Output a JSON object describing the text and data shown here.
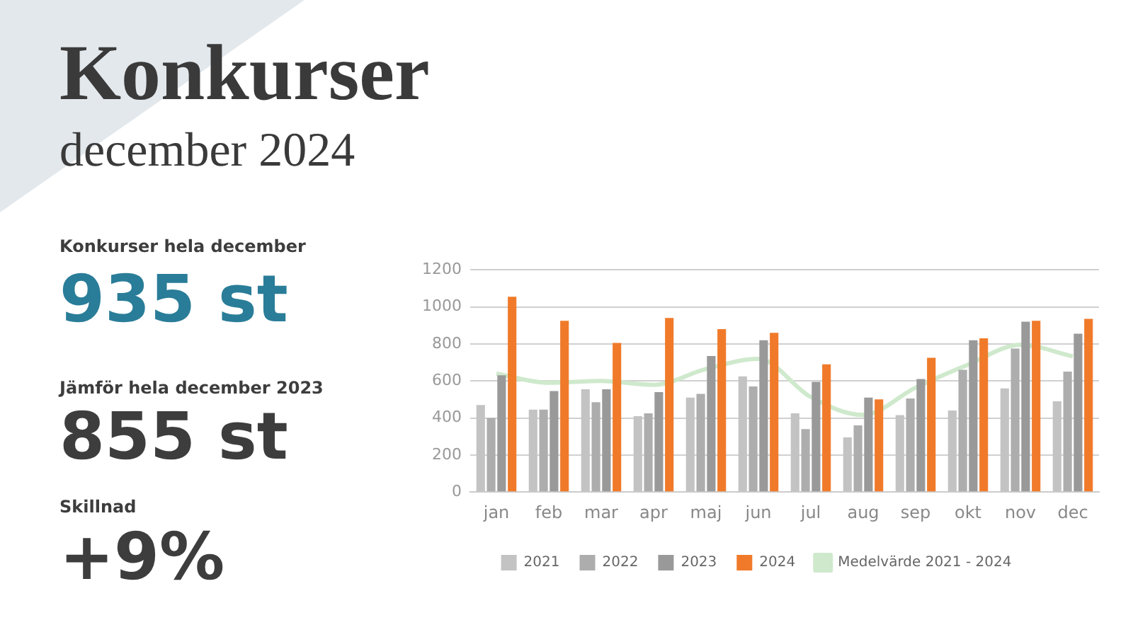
{
  "chart_data": {
    "type": "bar",
    "title": "Konkurser",
    "subtitle": "december 2024",
    "annotations": [
      "Konkurser hela december",
      "935 st",
      "Jämför hela december 2023",
      "855 st",
      "Skillnad",
      "+9%"
    ],
    "categories": [
      "jan",
      "feb",
      "mar",
      "apr",
      "maj",
      "jun",
      "jul",
      "aug",
      "sep",
      "okt",
      "nov",
      "dec"
    ],
    "series": [
      {
        "name": "Medelvärde 2021 - 2024",
        "type": "line",
        "color": "#cfe9cc",
        "values": [
          639,
          590,
          600,
          579,
          664,
          719,
          513,
          416,
          564,
          688,
          795,
          733
        ]
      },
      {
        "name": "2021",
        "color": "#c3c3c3",
        "values": [
          470,
          445,
          555,
          410,
          510,
          625,
          425,
          295,
          415,
          440,
          560,
          490
        ]
      },
      {
        "name": "2022",
        "color": "#adadad",
        "values": [
          400,
          445,
          485,
          425,
          530,
          570,
          340,
          360,
          505,
          660,
          775,
          650
        ]
      },
      {
        "name": "2023",
        "color": "#999999",
        "values": [
          630,
          545,
          555,
          540,
          735,
          820,
          595,
          510,
          610,
          820,
          920,
          855
        ]
      },
      {
        "name": "2024",
        "color": "#f07a2a",
        "values": [
          1055,
          925,
          805,
          940,
          880,
          860,
          690,
          500,
          725,
          830,
          925,
          935
        ]
      }
    ],
    "ylim": [
      0,
      1200
    ],
    "yticks": [
      0,
      200,
      400,
      600,
      800,
      1000,
      1200
    ],
    "grid": "y",
    "legend": "bottom",
    "marker": "none"
  }
}
